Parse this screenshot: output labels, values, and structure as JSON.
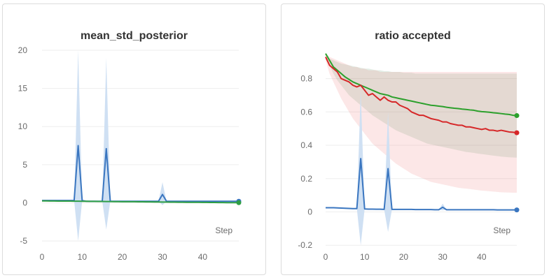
{
  "chart_data": [
    {
      "type": "line",
      "title": "mean_std_posterior",
      "xlabel": "Step",
      "ylabel": "",
      "xlim": [
        0,
        49
      ],
      "ylim": [
        -6,
        20
      ],
      "yticks": [
        20,
        15,
        10,
        5,
        0,
        -5
      ],
      "xticks": [
        0,
        10,
        20,
        30,
        40
      ],
      "grid": true,
      "series": [
        {
          "color": "#3a76c0",
          "band_color": "#cfe0f3",
          "x": [
            0,
            1,
            2,
            3,
            4,
            5,
            6,
            7,
            8,
            9,
            10,
            11,
            12,
            13,
            14,
            15,
            16,
            17,
            18,
            19,
            20,
            21,
            22,
            23,
            24,
            25,
            26,
            27,
            28,
            29,
            30,
            31,
            32,
            33,
            34,
            35,
            36,
            37,
            38,
            39,
            40,
            41,
            42,
            43,
            44,
            45,
            46,
            47,
            48,
            49
          ],
          "values": [
            0.3,
            0.3,
            0.3,
            0.3,
            0.3,
            0.3,
            0.3,
            0.3,
            0.3,
            7.5,
            0.3,
            0.2,
            0.2,
            0.2,
            0.2,
            0.2,
            7.1,
            0.2,
            0.2,
            0.2,
            0.2,
            0.2,
            0.2,
            0.2,
            0.2,
            0.2,
            0.2,
            0.2,
            0.2,
            0.2,
            1.1,
            0.2,
            0.2,
            0.2,
            0.2,
            0.2,
            0.2,
            0.2,
            0.2,
            0.2,
            0.2,
            0.2,
            0.2,
            0.2,
            0.2,
            0.2,
            0.2,
            0.2,
            0.2,
            0.2
          ],
          "band_low": [
            0.3,
            0.3,
            0.3,
            0.3,
            0.3,
            0.3,
            0.3,
            0.3,
            0.3,
            -5.0,
            0.3,
            0.2,
            0.2,
            0.2,
            0.2,
            0.2,
            -3.5,
            0.2,
            0.2,
            0.2,
            0.2,
            0.2,
            0.2,
            0.2,
            0.2,
            0.2,
            0.2,
            0.2,
            0.2,
            0.2,
            -0.3,
            0.2,
            0.2,
            0.2,
            0.2,
            0.2,
            0.2,
            0.2,
            0.2,
            0.2,
            0.2,
            0.2,
            0.2,
            0.2,
            0.2,
            0.2,
            0.2,
            0.2,
            0.2,
            0.2
          ],
          "band_high": [
            0.3,
            0.3,
            0.3,
            0.3,
            0.3,
            0.3,
            0.3,
            0.3,
            0.3,
            20.0,
            0.3,
            0.2,
            0.2,
            0.2,
            0.2,
            0.2,
            19.0,
            0.2,
            0.2,
            0.2,
            0.2,
            0.2,
            0.2,
            0.2,
            0.2,
            0.2,
            0.2,
            0.2,
            0.2,
            0.2,
            2.7,
            0.2,
            0.2,
            0.2,
            0.2,
            0.2,
            0.2,
            0.2,
            0.2,
            0.2,
            0.2,
            0.2,
            0.2,
            0.2,
            0.2,
            0.2,
            0.2,
            0.2,
            0.2,
            0.2
          ]
        },
        {
          "color": "#2e9e44",
          "x": [
            0,
            1,
            2,
            3,
            4,
            5,
            6,
            7,
            8,
            9,
            10,
            11,
            12,
            13,
            14,
            15,
            16,
            17,
            18,
            19,
            20,
            21,
            22,
            23,
            24,
            25,
            26,
            27,
            28,
            29,
            30,
            31,
            32,
            33,
            34,
            35,
            36,
            37,
            38,
            39,
            40,
            41,
            42,
            43,
            44,
            45,
            46,
            47,
            48,
            49
          ],
          "values": [
            0.25,
            0.25,
            0.24,
            0.24,
            0.23,
            0.23,
            0.22,
            0.22,
            0.21,
            0.21,
            0.2,
            0.2,
            0.19,
            0.19,
            0.18,
            0.18,
            0.17,
            0.17,
            0.16,
            0.16,
            0.15,
            0.15,
            0.14,
            0.14,
            0.13,
            0.13,
            0.12,
            0.12,
            0.11,
            0.11,
            0.1,
            0.1,
            0.09,
            0.09,
            0.08,
            0.08,
            0.07,
            0.07,
            0.06,
            0.06,
            0.05,
            0.05,
            0.04,
            0.04,
            0.03,
            0.03,
            0.02,
            0.02,
            0.02,
            0.02
          ]
        }
      ]
    },
    {
      "type": "line",
      "title": "ratio accepted",
      "xlabel": "Step",
      "ylabel": "",
      "xlim": [
        0,
        49
      ],
      "ylim": [
        -0.22,
        0.97
      ],
      "yticks": [
        0.8,
        0.6,
        0.4,
        0.2,
        0,
        -0.2
      ],
      "ytick_labels": [
        "0.8",
        "0.6",
        "0.4",
        "0.2",
        "0",
        "-0.2"
      ],
      "xticks": [
        0,
        10,
        20,
        30,
        40
      ],
      "grid": true,
      "series": [
        {
          "color": "#2ca02c",
          "band_color": "rgba(40,120,60,0.13)",
          "x": [
            0,
            1,
            2,
            3,
            4,
            5,
            6,
            7,
            8,
            9,
            10,
            11,
            12,
            13,
            14,
            15,
            16,
            17,
            18,
            19,
            20,
            21,
            22,
            23,
            24,
            25,
            26,
            27,
            28,
            29,
            30,
            31,
            32,
            33,
            34,
            35,
            36,
            37,
            38,
            39,
            40,
            41,
            42,
            43,
            44,
            45,
            46,
            47,
            48,
            49
          ],
          "values": [
            0.95,
            0.91,
            0.87,
            0.85,
            0.83,
            0.81,
            0.795,
            0.78,
            0.77,
            0.76,
            0.75,
            0.74,
            0.73,
            0.72,
            0.71,
            0.705,
            0.7,
            0.69,
            0.685,
            0.68,
            0.675,
            0.67,
            0.665,
            0.66,
            0.655,
            0.65,
            0.645,
            0.64,
            0.638,
            0.635,
            0.632,
            0.628,
            0.625,
            0.622,
            0.62,
            0.617,
            0.615,
            0.612,
            0.61,
            0.605,
            0.602,
            0.6,
            0.598,
            0.595,
            0.593,
            0.59,
            0.587,
            0.585,
            0.58,
            0.578
          ],
          "band_low": [
            0.94,
            0.92,
            0.91,
            0.9,
            0.89,
            0.885,
            0.88,
            0.875,
            0.87,
            0.865,
            0.86,
            0.86,
            0.855,
            0.85,
            0.85,
            0.845,
            0.845,
            0.84,
            0.84,
            0.84,
            0.835,
            0.835,
            0.835,
            0.83,
            0.83,
            0.83,
            0.83,
            0.83,
            0.83,
            0.83,
            0.83,
            0.83,
            0.83,
            0.83,
            0.83,
            0.83,
            0.83,
            0.83,
            0.83,
            0.83,
            0.83,
            0.83,
            0.83,
            0.83,
            0.83,
            0.83,
            0.83,
            0.83,
            0.83,
            0.83
          ],
          "band_high": [
            0.95,
            0.88,
            0.83,
            0.79,
            0.76,
            0.73,
            0.7,
            0.68,
            0.66,
            0.64,
            0.62,
            0.6,
            0.58,
            0.565,
            0.55,
            0.535,
            0.52,
            0.505,
            0.49,
            0.48,
            0.47,
            0.46,
            0.45,
            0.44,
            0.43,
            0.42,
            0.41,
            0.405,
            0.4,
            0.395,
            0.39,
            0.385,
            0.38,
            0.375,
            0.37,
            0.365,
            0.36,
            0.357,
            0.354,
            0.35,
            0.347,
            0.344,
            0.341,
            0.338,
            0.335,
            0.332,
            0.33,
            0.328,
            0.327,
            0.326
          ]
        },
        {
          "color": "#d62728",
          "band_color": "rgba(240,110,110,0.17)",
          "x": [
            0,
            1,
            2,
            3,
            4,
            5,
            6,
            7,
            8,
            9,
            10,
            11,
            12,
            13,
            14,
            15,
            16,
            17,
            18,
            19,
            20,
            21,
            22,
            23,
            24,
            25,
            26,
            27,
            28,
            29,
            30,
            31,
            32,
            33,
            34,
            35,
            36,
            37,
            38,
            39,
            40,
            41,
            42,
            43,
            44,
            45,
            46,
            47,
            48,
            49
          ],
          "values": [
            0.93,
            0.88,
            0.86,
            0.84,
            0.8,
            0.79,
            0.78,
            0.76,
            0.75,
            0.76,
            0.73,
            0.7,
            0.71,
            0.69,
            0.67,
            0.69,
            0.67,
            0.66,
            0.66,
            0.64,
            0.63,
            0.62,
            0.6,
            0.59,
            0.58,
            0.58,
            0.57,
            0.56,
            0.555,
            0.55,
            0.54,
            0.54,
            0.53,
            0.525,
            0.52,
            0.52,
            0.51,
            0.51,
            0.505,
            0.5,
            0.495,
            0.5,
            0.49,
            0.49,
            0.485,
            0.49,
            0.485,
            0.48,
            0.478,
            0.475
          ],
          "band_low": [
            0.95,
            0.93,
            0.92,
            0.91,
            0.9,
            0.89,
            0.88,
            0.87,
            0.87,
            0.86,
            0.86,
            0.85,
            0.85,
            0.85,
            0.84,
            0.84,
            0.84,
            0.84,
            0.84,
            0.84,
            0.84,
            0.84,
            0.84,
            0.84,
            0.84,
            0.84,
            0.84,
            0.84,
            0.84,
            0.84,
            0.84,
            0.84,
            0.84,
            0.84,
            0.84,
            0.84,
            0.84,
            0.84,
            0.84,
            0.84,
            0.84,
            0.84,
            0.84,
            0.84,
            0.84,
            0.84,
            0.84,
            0.84,
            0.84,
            0.84
          ],
          "band_high": [
            0.91,
            0.83,
            0.78,
            0.73,
            0.68,
            0.64,
            0.6,
            0.56,
            0.53,
            0.5,
            0.47,
            0.44,
            0.41,
            0.39,
            0.37,
            0.35,
            0.33,
            0.31,
            0.29,
            0.275,
            0.26,
            0.245,
            0.23,
            0.22,
            0.21,
            0.2,
            0.19,
            0.18,
            0.175,
            0.17,
            0.165,
            0.16,
            0.155,
            0.15,
            0.145,
            0.142,
            0.14,
            0.137,
            0.134,
            0.131,
            0.128,
            0.126,
            0.124,
            0.122,
            0.12,
            0.118,
            0.117,
            0.116,
            0.115,
            0.115
          ]
        },
        {
          "color": "#3a76c0",
          "band_color": "#cfe0f3",
          "x": [
            0,
            1,
            2,
            3,
            4,
            5,
            6,
            7,
            8,
            9,
            10,
            11,
            12,
            13,
            14,
            15,
            16,
            17,
            18,
            19,
            20,
            21,
            22,
            23,
            24,
            25,
            26,
            27,
            28,
            29,
            30,
            31,
            32,
            33,
            34,
            35,
            36,
            37,
            38,
            39,
            40,
            41,
            42,
            43,
            44,
            45,
            46,
            47,
            48,
            49
          ],
          "values": [
            0.025,
            0.025,
            0.025,
            0.024,
            0.023,
            0.022,
            0.021,
            0.02,
            0.02,
            0.32,
            0.018,
            0.017,
            0.017,
            0.016,
            0.016,
            0.015,
            0.26,
            0.015,
            0.015,
            0.015,
            0.015,
            0.015,
            0.015,
            0.014,
            0.014,
            0.014,
            0.014,
            0.014,
            0.013,
            0.013,
            0.028,
            0.013,
            0.013,
            0.013,
            0.013,
            0.013,
            0.013,
            0.013,
            0.013,
            0.013,
            0.013,
            0.013,
            0.013,
            0.013,
            0.012,
            0.012,
            0.012,
            0.012,
            0.012,
            0.012
          ],
          "band_low": [
            0.025,
            0.025,
            0.025,
            0.024,
            0.023,
            0.022,
            0.021,
            0.02,
            0.02,
            -0.2,
            0.018,
            0.017,
            0.017,
            0.016,
            0.016,
            0.015,
            -0.12,
            0.015,
            0.015,
            0.015,
            0.015,
            0.015,
            0.015,
            0.014,
            0.014,
            0.014,
            0.014,
            0.014,
            0.013,
            0.013,
            0.01,
            0.013,
            0.013,
            0.013,
            0.013,
            0.013,
            0.013,
            0.013,
            0.013,
            0.013,
            0.013,
            0.013,
            0.013,
            0.013,
            0.012,
            0.012,
            0.012,
            0.012,
            0.012,
            0.012
          ],
          "band_high": [
            0.025,
            0.025,
            0.025,
            0.024,
            0.023,
            0.022,
            0.021,
            0.02,
            0.02,
            0.73,
            0.018,
            0.017,
            0.017,
            0.016,
            0.016,
            0.015,
            0.6,
            0.015,
            0.015,
            0.015,
            0.015,
            0.015,
            0.015,
            0.014,
            0.014,
            0.014,
            0.014,
            0.014,
            0.013,
            0.013,
            0.05,
            0.013,
            0.013,
            0.013,
            0.013,
            0.013,
            0.013,
            0.013,
            0.013,
            0.013,
            0.013,
            0.013,
            0.013,
            0.013,
            0.012,
            0.012,
            0.012,
            0.012,
            0.012,
            0.012
          ]
        }
      ]
    }
  ]
}
